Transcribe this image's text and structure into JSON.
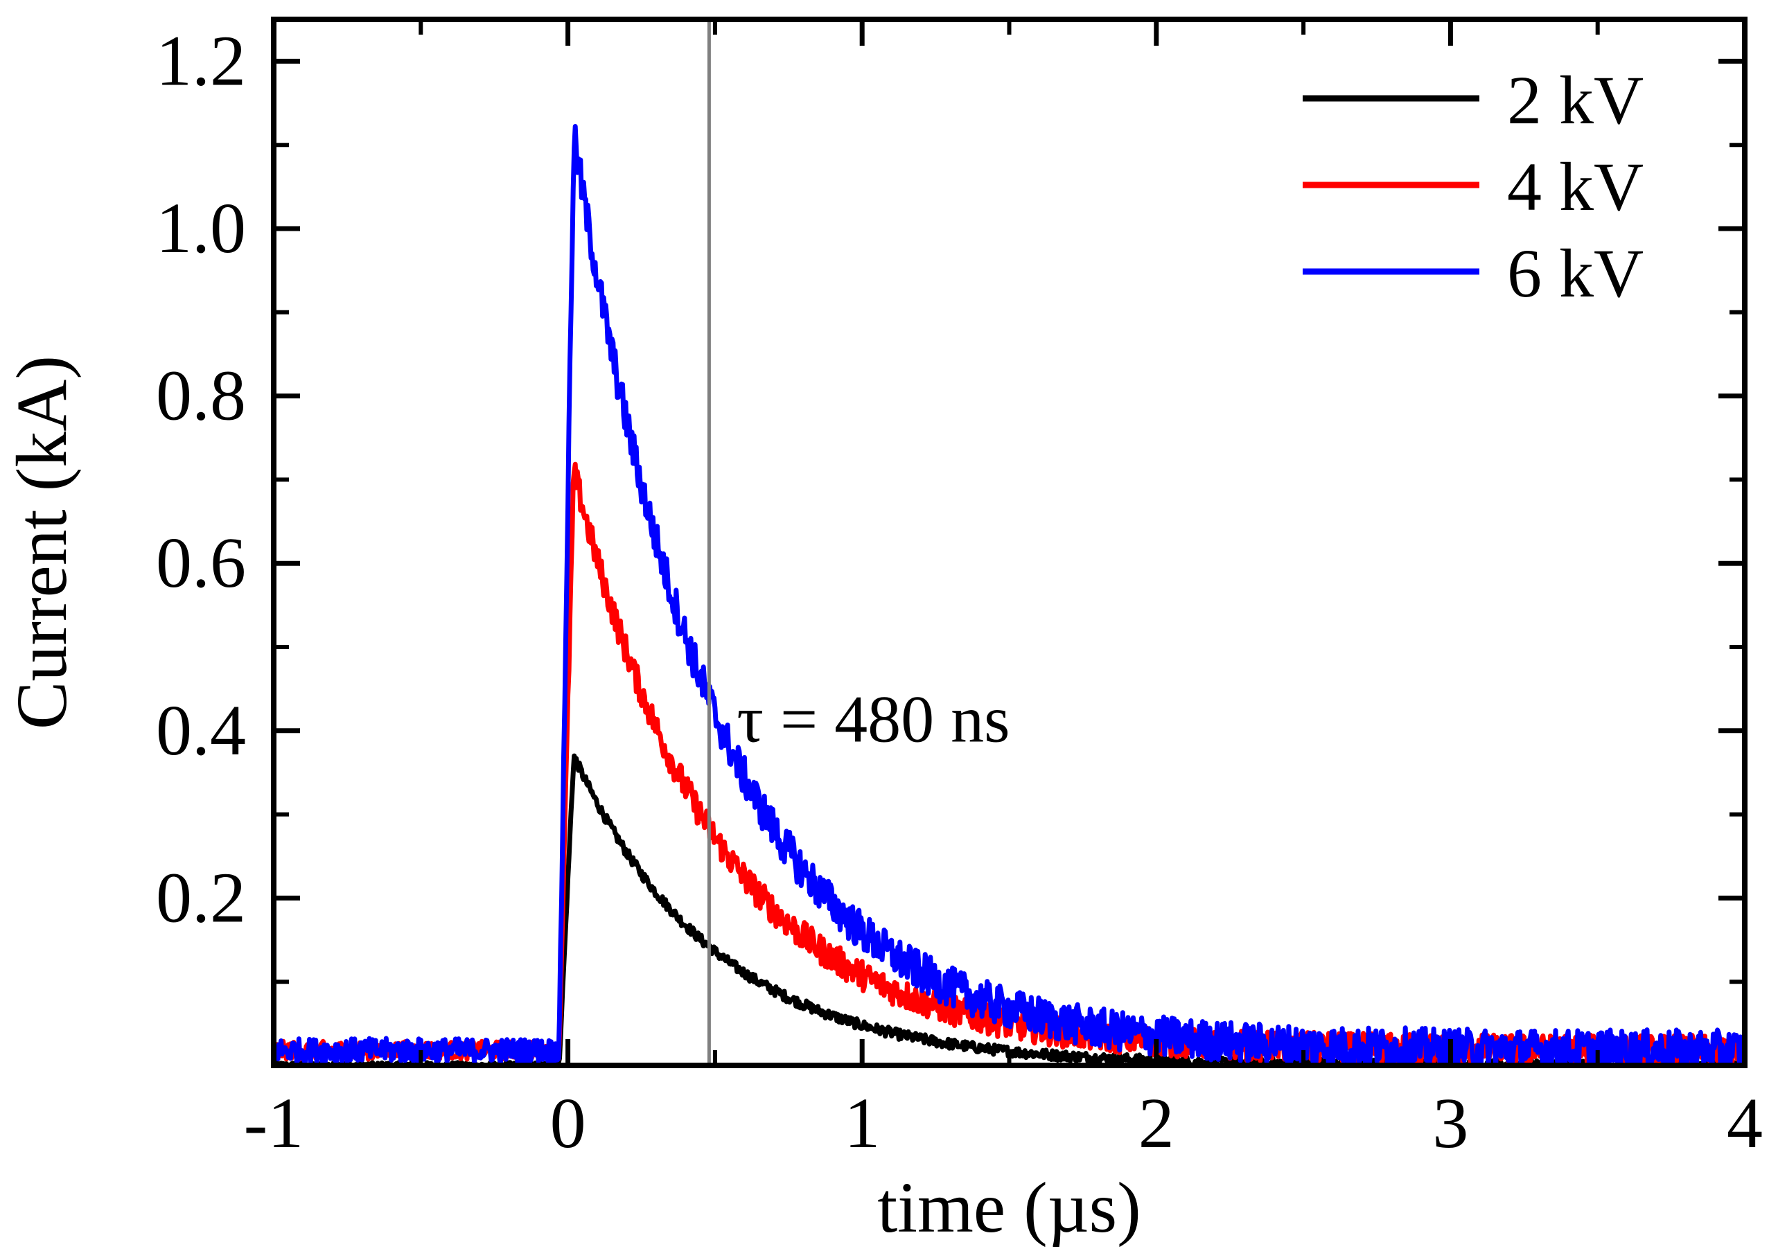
{
  "chart_data": {
    "type": "line",
    "title": "",
    "xlabel": "time (µs)",
    "ylabel": "Current (kA)",
    "xlim": [
      -1,
      4
    ],
    "ylim": [
      0,
      1.25
    ],
    "xticks": [
      -1,
      0,
      1,
      2,
      3,
      4
    ],
    "xtick_labels": [
      "-1",
      "0",
      "1",
      "2",
      "3",
      "4"
    ],
    "yticks": [
      0.2,
      0.4,
      0.6,
      0.8,
      1.0,
      1.2
    ],
    "ytick_labels": [
      "0.2",
      "0.4",
      "0.6",
      "0.8",
      "1.0",
      "1.2"
    ],
    "grid": false,
    "legend_position": "top-right",
    "series": [
      {
        "name": "2 kV",
        "color": "#000000",
        "baseline": 0.0,
        "rise_start": -0.03,
        "peak_time": 0.02,
        "peak": 0.37,
        "tau": 0.48,
        "noise": 0.006
      },
      {
        "name": "4 kV",
        "color": "#ff0000",
        "baseline": 0.018,
        "rise_start": -0.03,
        "peak_time": 0.02,
        "peak": 0.71,
        "tau": 0.48,
        "noise": 0.018
      },
      {
        "name": "6 kV",
        "color": "#0000ff",
        "baseline": 0.018,
        "rise_start": -0.03,
        "peak_time": 0.02,
        "peak": 1.11,
        "tau": 0.48,
        "noise": 0.024
      }
    ],
    "annotations": [
      {
        "text": "τ = 480 ns",
        "x": 0.48,
        "y": 0.42
      }
    ],
    "reference_line": {
      "x": 0.48,
      "color": "#808080"
    }
  }
}
